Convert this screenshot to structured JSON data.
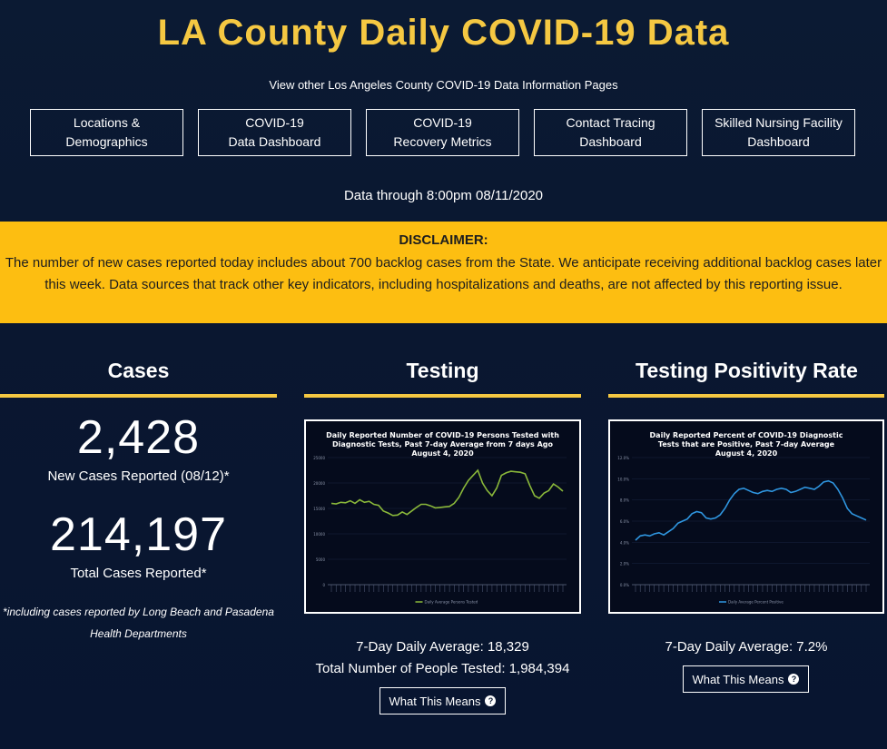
{
  "header": {
    "title": "LA County Daily COVID-19 Data",
    "subtitle": "View other Los Angeles County COVID-19 Data Information Pages",
    "data_through": "Data through 8:00pm 08/11/2020"
  },
  "nav": [
    {
      "label": "Locations &\nDemographics"
    },
    {
      "label": "COVID-19\nData Dashboard"
    },
    {
      "label": "COVID-19\nRecovery Metrics"
    },
    {
      "label": "Contact Tracing\nDashboard"
    },
    {
      "label": "Skilled Nursing Facility\nDashboard"
    }
  ],
  "disclaimer": {
    "title": "DISCLAIMER:",
    "text": "The number of new cases reported today includes about 700 backlog cases from the State. We anticipate receiving additional backlog cases later this week. Data sources that track other key indicators, including hospitalizations and deaths, are not affected by this reporting issue."
  },
  "cases": {
    "heading": "Cases",
    "new_cases": "2,428",
    "new_cases_label": "New Cases Reported (08/12)*",
    "total_cases": "214,197",
    "total_cases_label": "Total Cases Reported*",
    "footnote": "*including cases reported by Long Beach and Pasadena Health Departments"
  },
  "testing": {
    "heading": "Testing",
    "daily_average": "7-Day Daily Average: 18,329",
    "total_tested": "Total Number of People Tested: 1,984,394",
    "means_label": "What This Means"
  },
  "positivity": {
    "heading": "Testing Positivity Rate",
    "daily_average": "7-Day Daily Average: 7.2%",
    "means_label": "What This Means"
  },
  "colors": {
    "accent": "#f5c842",
    "disclaimer_bg": "#fdbe11",
    "testing_line": "#8ab83a",
    "positivity_line": "#2f96e0"
  },
  "icons": {
    "means": "question-circle-icon"
  },
  "chart_data": [
    {
      "type": "line",
      "title": "Daily Reported Number of COVID-19 Persons Tested with Diagnostic Tests, Past 7-day Average from 7 days Ago",
      "subtitle": "August 4, 2020",
      "legend": "Daily Average Persons Tested",
      "ylim": [
        0,
        25000
      ],
      "yticks": [
        "0",
        "5000",
        "10000",
        "15000",
        "20000",
        "25000"
      ],
      "series": [
        {
          "name": "Daily Average Persons Tested",
          "values": [
            16000,
            15900,
            16200,
            16100,
            16500,
            16000,
            16700,
            16200,
            16400,
            15800,
            15600,
            14500,
            14100,
            13600,
            13700,
            14300,
            13800,
            14500,
            15200,
            15800,
            15800,
            15500,
            15100,
            15200,
            15300,
            15400,
            16000,
            17200,
            19000,
            20500,
            21500,
            22500,
            20000,
            18500,
            17500,
            19000,
            21500,
            22000,
            22300,
            22200,
            22100,
            21800,
            19500,
            17500,
            17000,
            18000,
            18500,
            19800,
            19200,
            18400
          ]
        }
      ]
    },
    {
      "type": "line",
      "title": "Daily Reported Percent of COVID-19 Diagnostic Tests that are Positive, Past 7-day Average",
      "subtitle": "August 4, 2020",
      "legend": "Daily Average Percent Positive",
      "ylim": [
        0,
        12
      ],
      "yticks": [
        "0.0%",
        "2.0%",
        "4.0%",
        "6.0%",
        "8.0%",
        "10.0%",
        "12.0%"
      ],
      "series": [
        {
          "name": "Daily Average Percent Positive",
          "values": [
            4.2,
            4.6,
            4.7,
            4.6,
            4.8,
            4.9,
            4.7,
            5.0,
            5.3,
            5.8,
            6.0,
            6.2,
            6.7,
            6.9,
            6.8,
            6.3,
            6.2,
            6.3,
            6.6,
            7.2,
            8.0,
            8.6,
            9.0,
            9.1,
            8.9,
            8.7,
            8.6,
            8.8,
            8.9,
            8.8,
            9.0,
            9.1,
            9.0,
            8.7,
            8.8,
            9.0,
            9.2,
            9.1,
            9.0,
            9.3,
            9.7,
            9.8,
            9.6,
            9.0,
            8.2,
            7.2,
            6.7,
            6.5,
            6.3,
            6.1
          ]
        }
      ]
    }
  ]
}
